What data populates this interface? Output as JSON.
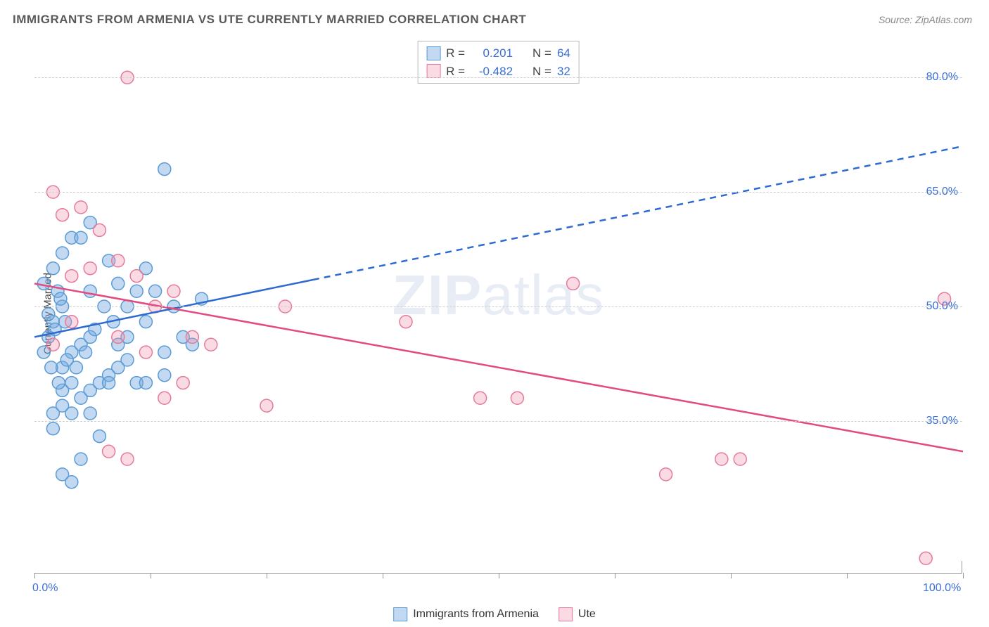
{
  "title": "IMMIGRANTS FROM ARMENIA VS UTE CURRENTLY MARRIED CORRELATION CHART",
  "source": "Source: ZipAtlas.com",
  "watermark": {
    "bold": "ZIP",
    "light": "atlas"
  },
  "ylabel": "Currently Married",
  "chart": {
    "type": "scatter",
    "xlim": [
      0,
      100
    ],
    "ylim": [
      15,
      85
    ],
    "x_ticks": [
      0,
      12.5,
      25,
      37.5,
      50,
      62.5,
      75,
      87.5,
      100
    ],
    "x_tick_labels_show": [
      0,
      100
    ],
    "x_tick_label_fmt": [
      "0.0%",
      "100.0%"
    ],
    "y_ticks": [
      35,
      50,
      65,
      80
    ],
    "y_tick_labels": [
      "35.0%",
      "50.0%",
      "65.0%",
      "80.0%"
    ],
    "grid_color": "#cfcfcf",
    "grid_dash": "4,4",
    "background_color": "#ffffff",
    "tick_label_color": "#3a6fd8",
    "series": [
      {
        "label": "Immigrants from Armenia",
        "color_fill": "rgba(120,170,225,0.45)",
        "color_stroke": "#5a9bd5",
        "marker_r": 9,
        "N": 64,
        "R": "0.201",
        "fit": {
          "x0": 0,
          "y0": 46,
          "x1": 100,
          "y1": 71,
          "solid_to_x": 30,
          "color": "#2e6bd0",
          "width": 2.5
        },
        "points": [
          [
            1,
            44
          ],
          [
            2,
            48
          ],
          [
            3,
            50
          ],
          [
            2.5,
            52
          ],
          [
            1.5,
            46
          ],
          [
            3,
            42
          ],
          [
            4,
            40
          ],
          [
            5,
            38
          ],
          [
            2,
            36
          ],
          [
            3,
            37
          ],
          [
            6,
            39
          ],
          [
            7,
            40
          ],
          [
            8,
            41
          ],
          [
            4,
            44
          ],
          [
            5,
            45
          ],
          [
            6,
            46
          ],
          [
            2,
            55
          ],
          [
            1,
            53
          ],
          [
            3,
            57
          ],
          [
            4,
            59
          ],
          [
            1.5,
            49
          ],
          [
            2.2,
            47
          ],
          [
            3.5,
            43
          ],
          [
            4.5,
            42
          ],
          [
            5.5,
            44
          ],
          [
            6.5,
            47
          ],
          [
            7.5,
            50
          ],
          [
            8.5,
            48
          ],
          [
            9,
            45
          ],
          [
            10,
            43
          ],
          [
            11,
            40
          ],
          [
            12,
            48
          ],
          [
            13,
            52
          ],
          [
            14,
            44
          ],
          [
            15,
            50
          ],
          [
            16,
            46
          ],
          [
            17,
            45
          ],
          [
            18,
            51
          ],
          [
            8,
            56
          ],
          [
            9,
            53
          ],
          [
            10,
            50
          ],
          [
            11,
            52
          ],
          [
            12,
            55
          ],
          [
            5,
            59
          ],
          [
            6,
            61
          ],
          [
            3,
            28
          ],
          [
            4,
            27
          ],
          [
            5,
            30
          ],
          [
            7,
            33
          ],
          [
            6,
            36
          ],
          [
            2,
            34
          ],
          [
            4,
            36
          ],
          [
            3,
            39
          ],
          [
            8,
            40
          ],
          [
            9,
            42
          ],
          [
            10,
            46
          ],
          [
            12,
            40
          ],
          [
            14,
            41
          ],
          [
            6,
            52
          ],
          [
            2.8,
            51
          ],
          [
            3.3,
            48
          ],
          [
            1.8,
            42
          ],
          [
            2.6,
            40
          ],
          [
            14,
            68
          ]
        ]
      },
      {
        "label": "Ute",
        "color_fill": "rgba(240,150,175,0.35)",
        "color_stroke": "#e67a9b",
        "marker_r": 9,
        "N": 32,
        "R": "-0.482",
        "fit": {
          "x0": 0,
          "y0": 53,
          "x1": 100,
          "y1": 31,
          "solid_to_x": 100,
          "color": "#e24a80",
          "width": 2.5
        },
        "points": [
          [
            2,
            65
          ],
          [
            3,
            62
          ],
          [
            5,
            63
          ],
          [
            7,
            60
          ],
          [
            4,
            54
          ],
          [
            6,
            55
          ],
          [
            9,
            56
          ],
          [
            11,
            54
          ],
          [
            13,
            50
          ],
          [
            15,
            52
          ],
          [
            17,
            46
          ],
          [
            19,
            45
          ],
          [
            9,
            46
          ],
          [
            12,
            44
          ],
          [
            14,
            38
          ],
          [
            16,
            40
          ],
          [
            8,
            31
          ],
          [
            10,
            30
          ],
          [
            10,
            80
          ],
          [
            25,
            37
          ],
          [
            27,
            50
          ],
          [
            40,
            48
          ],
          [
            48,
            38
          ],
          [
            52,
            38
          ],
          [
            58,
            53
          ],
          [
            68,
            28
          ],
          [
            74,
            30
          ],
          [
            76,
            30
          ],
          [
            96,
            17
          ],
          [
            98,
            51
          ],
          [
            2,
            45
          ],
          [
            4,
            48
          ]
        ]
      }
    ]
  },
  "legend_bottom": [
    {
      "label": "Immigrants from Armenia",
      "fill": "rgba(120,170,225,0.45)",
      "stroke": "#5a9bd5"
    },
    {
      "label": "Ute",
      "fill": "rgba(240,150,175,0.35)",
      "stroke": "#e67a9b"
    }
  ],
  "legend_top_label_R": "R =",
  "legend_top_label_N": "N ="
}
